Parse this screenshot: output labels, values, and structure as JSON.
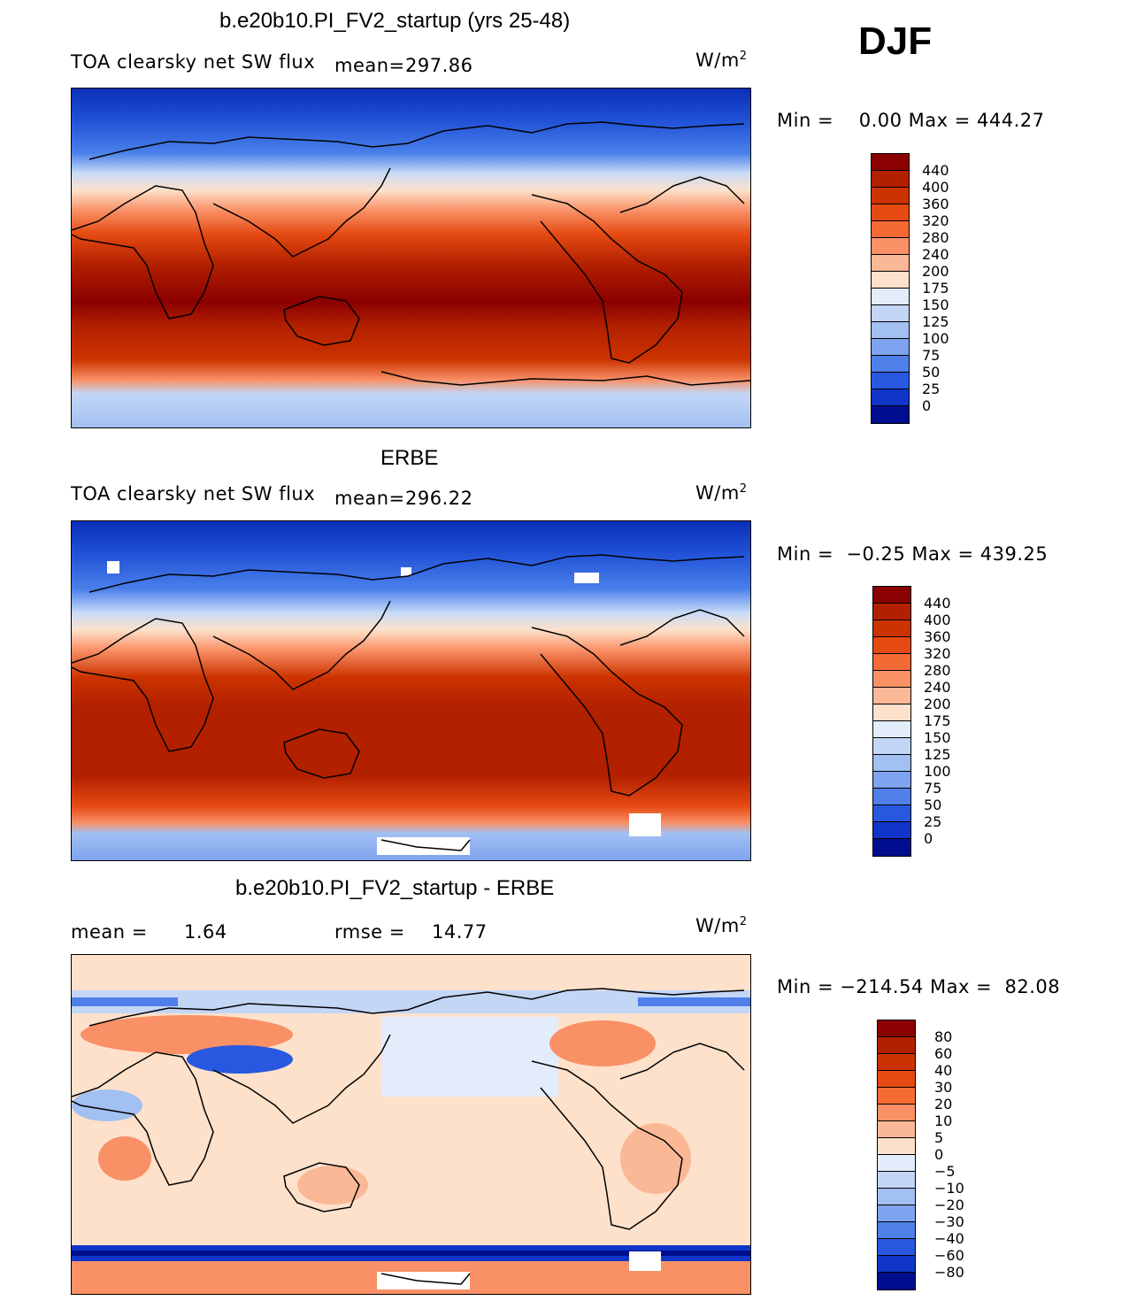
{
  "season": "DJF",
  "panels": [
    {
      "title": "b.e20b10.PI_FV2_startup (yrs 25-48)",
      "variable": "TOA clearsky net SW flux",
      "mean_label": "mean=",
      "mean": "297.86",
      "units_base": "W/m",
      "units_exp": "2",
      "minmax": "Min =    0.00 Max = 444.27",
      "colorbar_labels": [
        "440",
        "400",
        "360",
        "320",
        "280",
        "240",
        "200",
        "175",
        "150",
        "125",
        "100",
        "75",
        "50",
        "25",
        "0"
      ]
    },
    {
      "title": "ERBE",
      "variable": "TOA clearsky net SW flux",
      "mean_label": "mean=",
      "mean": "296.22",
      "units_base": "W/m",
      "units_exp": "2",
      "minmax": "Min =  −0.25 Max = 439.25",
      "colorbar_labels": [
        "440",
        "400",
        "360",
        "320",
        "280",
        "240",
        "200",
        "175",
        "150",
        "125",
        "100",
        "75",
        "50",
        "25",
        "0"
      ]
    },
    {
      "title": "b.e20b10.PI_FV2_startup - ERBE",
      "mean_label": "mean =",
      "mean": "1.64",
      "rmse_label": "rmse =",
      "rmse": "14.77",
      "units_base": "W/m",
      "units_exp": "2",
      "minmax": "Min = −214.54 Max =  82.08",
      "colorbar_labels": [
        "80",
        "60",
        "40",
        "30",
        "20",
        "10",
        "5",
        "0",
        "−5",
        "−10",
        "−20",
        "−30",
        "−40",
        "−60",
        "−80"
      ]
    }
  ],
  "colors": {
    "sequential": [
      "#8b0000",
      "#b22000",
      "#cc3300",
      "#e54a12",
      "#f46a33",
      "#f99066",
      "#fbb896",
      "#fde1cb",
      "#e3ecfb",
      "#c3d6f6",
      "#a2c0f2",
      "#7ea3ef",
      "#4f7fe9",
      "#2858e0",
      "#1036c8",
      "#000d8f"
    ],
    "diverging": [
      "#8b0000",
      "#b22000",
      "#cc3300",
      "#e54a12",
      "#f46a33",
      "#f99066",
      "#fbb896",
      "#fde1cb",
      "#e3ecfb",
      "#c3d6f6",
      "#a2c0f2",
      "#7ea3ef",
      "#4f7fe9",
      "#2858e0",
      "#1036c8",
      "#000d8f"
    ]
  }
}
